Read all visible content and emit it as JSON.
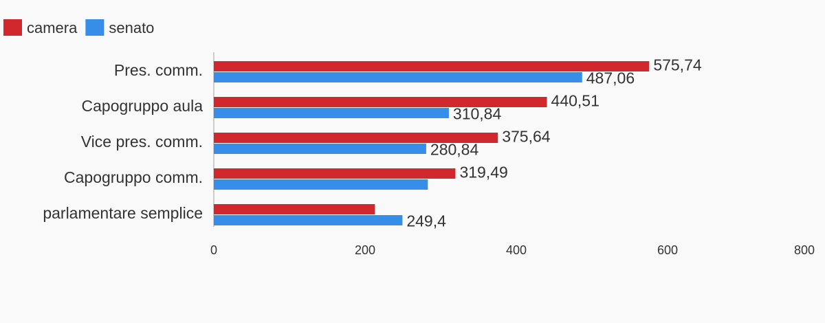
{
  "chart_data": {
    "type": "bar",
    "orientation": "horizontal",
    "categories": [
      "Pres. comm.",
      "Capogruppo aula",
      "Vice pres. comm.",
      "Capogruppo comm.",
      "parlamentare semplice"
    ],
    "series": [
      {
        "name": "camera",
        "color": "#d1282e",
        "values": [
          575.74,
          440.51,
          375.64,
          319.49,
          213
        ],
        "value_labels": [
          "575,74",
          "440,51",
          "375,64",
          "319,49",
          null
        ]
      },
      {
        "name": "senato",
        "color": "#368ee8",
        "values": [
          487.06,
          310.84,
          280.84,
          283,
          249.4
        ],
        "value_labels": [
          "487,06",
          "310,84",
          "280,84",
          null,
          "249,4"
        ]
      }
    ],
    "xlim": [
      0,
      800
    ],
    "xticks": [
      0,
      200,
      400,
      600,
      800
    ],
    "legend": "top-left"
  }
}
